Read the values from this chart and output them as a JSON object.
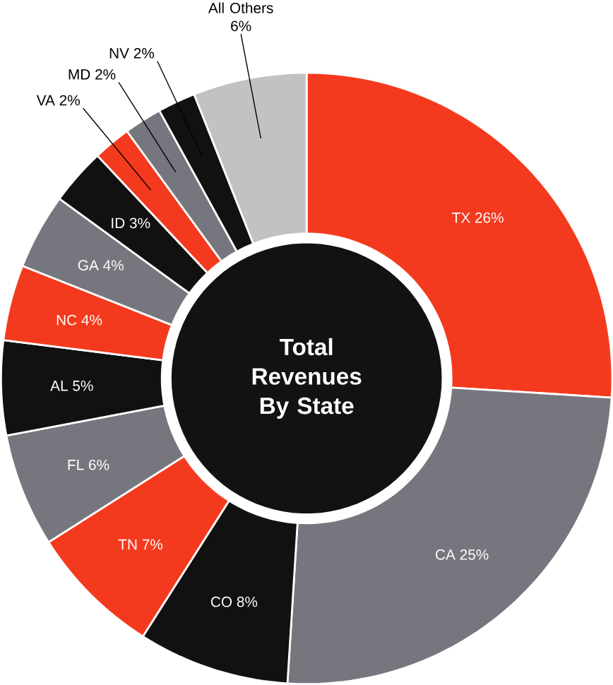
{
  "chart_data": {
    "type": "donut",
    "title": "Total Revenues By State",
    "categories": [
      "TX",
      "CA",
      "CO",
      "TN",
      "FL",
      "AL",
      "NC",
      "GA",
      "ID",
      "VA",
      "MD",
      "NV",
      "All Others"
    ],
    "values": [
      26,
      25,
      8,
      7,
      6,
      5,
      4,
      4,
      3,
      2,
      2,
      2,
      6
    ],
    "value_labels": [
      "26%",
      "25%",
      "8%",
      "7%",
      "6%",
      "5%",
      "4%",
      "4%",
      "3%",
      "2%",
      "2%",
      "2%",
      "6%"
    ],
    "colors": [
      "#f43a1e",
      "#76777e",
      "#111111",
      "#f43a1e",
      "#76777e",
      "#111111",
      "#f43a1e",
      "#76777e",
      "#111111",
      "#f43a1e",
      "#76777e",
      "#111111",
      "#c2c2c2"
    ]
  }
}
